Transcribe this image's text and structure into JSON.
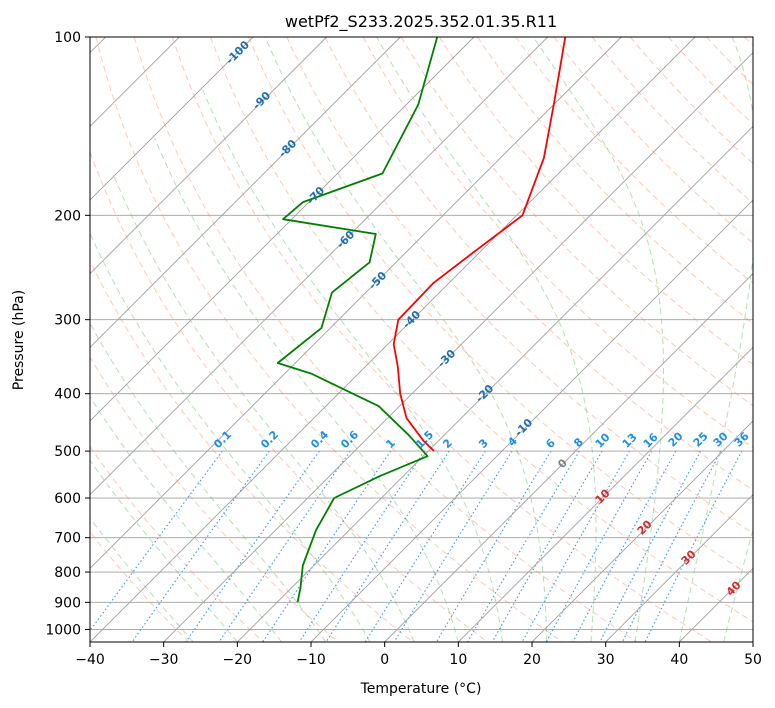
{
  "chart_data": {
    "type": "line",
    "chart_kind": "skew-t log-p",
    "title": "wetPf2_S233.2025.352.01.35.R11",
    "xlabel": "Temperature (°C)",
    "ylabel": "Pressure (hPa)",
    "xlim": [
      -40,
      50
    ],
    "ylim": [
      1050,
      100
    ],
    "y_scale": "log",
    "grid": true,
    "x_ticks": [
      -40,
      -30,
      -20,
      -10,
      0,
      10,
      20,
      30,
      40,
      50
    ],
    "y_ticks": [
      100,
      200,
      300,
      400,
      500,
      600,
      700,
      800,
      900,
      1000
    ],
    "colors": {
      "temperature": "#ff0000",
      "dewpoint": "#008000",
      "dry_adiabat": "#ff9a7a",
      "moist_adiabat": "#5cb85c",
      "mixing_ratio": "#1f8fe6",
      "isotherm_grid": "#a0a0a0",
      "dry_adiabat_label": "#1f6fb0",
      "mixing_ratio_label": "#1f8fe6",
      "moist_adiabat_label": "#d42a2a",
      "zero_label": "#808080"
    },
    "series": [
      {
        "key": "temperature",
        "points": [
          {
            "p": 100,
            "t": -57.6
          },
          {
            "p": 130,
            "t": -50
          },
          {
            "p": 160,
            "t": -44.1
          },
          {
            "p": 200,
            "t": -39.2
          },
          {
            "p": 230,
            "t": -40.8
          },
          {
            "p": 260,
            "t": -42.1
          },
          {
            "p": 300,
            "t": -41.9
          },
          {
            "p": 330,
            "t": -39.2
          },
          {
            "p": 360,
            "t": -35.6
          },
          {
            "p": 400,
            "t": -31.6
          },
          {
            "p": 440,
            "t": -27.4
          },
          {
            "p": 480,
            "t": -22.1
          },
          {
            "p": 500,
            "t": -19.2
          }
        ]
      },
      {
        "key": "dewpoint",
        "points": [
          {
            "p": 100,
            "t": -75
          },
          {
            "p": 130,
            "t": -68.4
          },
          {
            "p": 170,
            "t": -63.9
          },
          {
            "p": 190,
            "t": -70.8
          },
          {
            "p": 203,
            "t": -71.2
          },
          {
            "p": 215,
            "t": -56.6
          },
          {
            "p": 240,
            "t": -53.6
          },
          {
            "p": 270,
            "t": -54.6
          },
          {
            "p": 310,
            "t": -51.2
          },
          {
            "p": 355,
            "t": -52.4
          },
          {
            "p": 370,
            "t": -46.4
          },
          {
            "p": 420,
            "t": -32.8
          },
          {
            "p": 470,
            "t": -24.8
          },
          {
            "p": 510,
            "t": -19.4
          },
          {
            "p": 550,
            "t": -23.1
          },
          {
            "p": 600,
            "t": -26.4
          },
          {
            "p": 680,
            "t": -24.5
          },
          {
            "p": 780,
            "t": -21.5
          },
          {
            "p": 850,
            "t": -18.8
          },
          {
            "p": 900,
            "t": -17.2
          }
        ]
      }
    ],
    "dry_adiabat_labels": [
      "-100",
      "-90",
      "-80",
      "-70",
      "-60",
      "-50",
      "-40",
      "-30",
      "-20",
      "-10"
    ],
    "mixing_ratio_labels": [
      "0.1",
      "0.2",
      "0.4",
      "0.6",
      "1",
      "1.5",
      "2",
      "3",
      "4",
      "6",
      "8",
      "10",
      "13",
      "16",
      "20",
      "25",
      "30",
      "36"
    ],
    "moist_adiabat_labels": [
      "0",
      "10",
      "20",
      "30",
      "40"
    ]
  }
}
